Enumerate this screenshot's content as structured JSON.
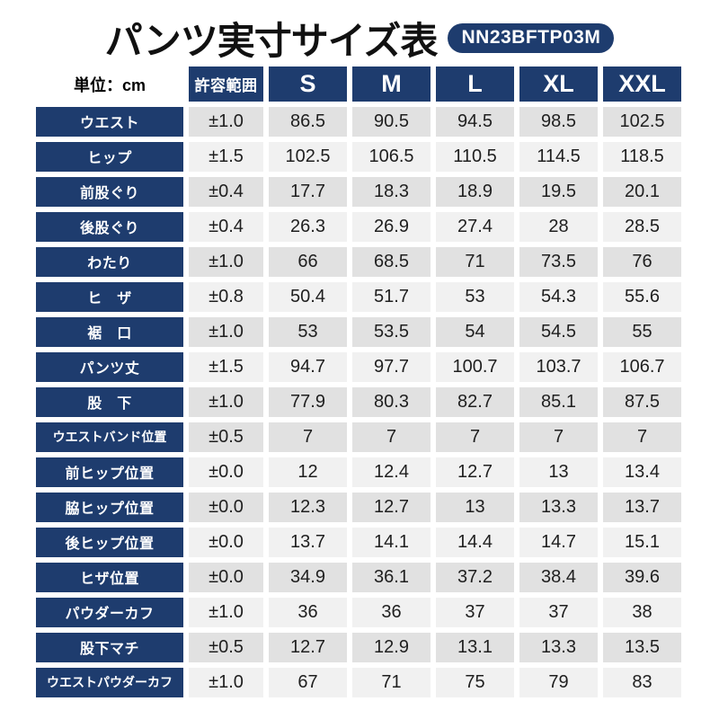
{
  "page": {
    "title": "パンツ実寸サイズ表",
    "model_badge": "NN23BFTP03M",
    "unit_label": "単位：cm"
  },
  "chart_data": {
    "type": "table",
    "title": "パンツ実寸サイズ表",
    "unit": "cm",
    "columns": [
      "許容範囲",
      "S",
      "M",
      "L",
      "XL",
      "XXL"
    ],
    "rows": [
      {
        "label": "ウエスト",
        "tolerance": "±1.0",
        "values": [
          "86.5",
          "90.5",
          "94.5",
          "98.5",
          "102.5"
        ]
      },
      {
        "label": "ヒップ",
        "tolerance": "±1.5",
        "values": [
          "102.5",
          "106.5",
          "110.5",
          "114.5",
          "118.5"
        ]
      },
      {
        "label": "前股ぐり",
        "tolerance": "±0.4",
        "values": [
          "17.7",
          "18.3",
          "18.9",
          "19.5",
          "20.1"
        ]
      },
      {
        "label": "後股ぐり",
        "tolerance": "±0.4",
        "values": [
          "26.3",
          "26.9",
          "27.4",
          "28",
          "28.5"
        ]
      },
      {
        "label": "わたり",
        "tolerance": "±1.0",
        "values": [
          "66",
          "68.5",
          "71",
          "73.5",
          "76"
        ]
      },
      {
        "label": "ヒ　ザ",
        "tolerance": "±0.8",
        "values": [
          "50.4",
          "51.7",
          "53",
          "54.3",
          "55.6"
        ]
      },
      {
        "label": "裾　口",
        "tolerance": "±1.0",
        "values": [
          "53",
          "53.5",
          "54",
          "54.5",
          "55"
        ]
      },
      {
        "label": "パンツ丈",
        "tolerance": "±1.5",
        "values": [
          "94.7",
          "97.7",
          "100.7",
          "103.7",
          "106.7"
        ]
      },
      {
        "label": "股　下",
        "tolerance": "±1.0",
        "values": [
          "77.9",
          "80.3",
          "82.7",
          "85.1",
          "87.5"
        ]
      },
      {
        "label": "ウエストバンド位置",
        "tolerance": "±0.5",
        "values": [
          "7",
          "7",
          "7",
          "7",
          "7"
        ]
      },
      {
        "label": "前ヒップ位置",
        "tolerance": "±0.0",
        "values": [
          "12",
          "12.4",
          "12.7",
          "13",
          "13.4"
        ]
      },
      {
        "label": "脇ヒップ位置",
        "tolerance": "±0.0",
        "values": [
          "12.3",
          "12.7",
          "13",
          "13.3",
          "13.7"
        ]
      },
      {
        "label": "後ヒップ位置",
        "tolerance": "±0.0",
        "values": [
          "13.7",
          "14.1",
          "14.4",
          "14.7",
          "15.1"
        ]
      },
      {
        "label": "ヒザ位置",
        "tolerance": "±0.0",
        "values": [
          "34.9",
          "36.1",
          "37.2",
          "38.4",
          "39.6"
        ]
      },
      {
        "label": "パウダーカフ",
        "tolerance": "±1.0",
        "values": [
          "36",
          "36",
          "37",
          "37",
          "38"
        ]
      },
      {
        "label": "股下マチ",
        "tolerance": "±0.5",
        "values": [
          "12.7",
          "12.9",
          "13.1",
          "13.3",
          "13.5"
        ]
      },
      {
        "label": "ウエストパウダーカフ",
        "tolerance": "±1.0",
        "values": [
          "67",
          "71",
          "75",
          "79",
          "83"
        ]
      }
    ]
  },
  "style": {
    "navy": "#1e3c6e",
    "row_shade_dark": "#e1e1e1",
    "row_shade_light": "#f1f1f1",
    "dark_row_indexes": [
      0,
      2,
      4,
      6,
      8,
      9,
      11,
      13,
      15
    ]
  }
}
